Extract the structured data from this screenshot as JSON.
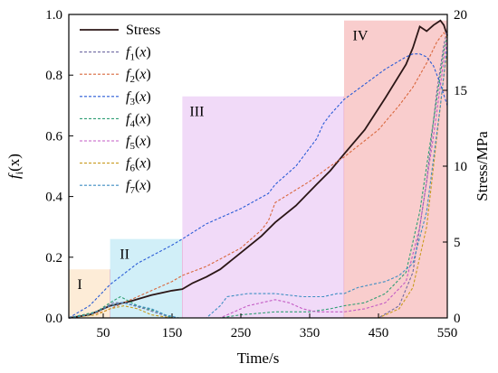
{
  "chart_data": {
    "type": "line",
    "xlabel": "Time/s",
    "ylabel_left": "f_i(x)",
    "ylabel_right": "Stress/MPa",
    "xlim": [
      0,
      550
    ],
    "ylim_left": [
      0,
      1.0
    ],
    "ylim_right": [
      0,
      20
    ],
    "x_ticks": [
      "50",
      "150",
      "250",
      "350",
      "450",
      "550"
    ],
    "y_left_ticks": [
      "0.0",
      "0.2",
      "0.4",
      "0.6",
      "0.8",
      "1.0"
    ],
    "y_right_ticks": [
      "0",
      "5",
      "10",
      "15",
      "20"
    ],
    "grid": false,
    "legend_position": "top-left",
    "stages": [
      {
        "label": "I",
        "x_range": [
          0,
          60
        ],
        "y_top": 0.16,
        "color": "#fde9d0"
      },
      {
        "label": "II",
        "x_range": [
          60,
          165
        ],
        "y_top": 0.26,
        "color": "#c9ecf7"
      },
      {
        "label": "III",
        "x_range": [
          165,
          400
        ],
        "y_top": 0.73,
        "color": "#eed3f7"
      },
      {
        "label": "IV",
        "x_range": [
          400,
          550
        ],
        "y_top": 0.98,
        "color": "#f8c4c4"
      }
    ],
    "series": [
      {
        "name": "Stress",
        "axis": "right",
        "style": "solid",
        "color": "#2b1616",
        "x": [
          0,
          30,
          60,
          90,
          120,
          150,
          165,
          180,
          200,
          220,
          250,
          280,
          300,
          330,
          360,
          380,
          400,
          430,
          460,
          490,
          500,
          510,
          520,
          530,
          540,
          545,
          550
        ],
        "y": [
          0,
          0.2,
          0.8,
          1.1,
          1.5,
          1.8,
          1.9,
          2.3,
          2.7,
          3.2,
          4.3,
          5.4,
          6.3,
          7.4,
          8.8,
          9.7,
          10.8,
          12.4,
          14.5,
          16.7,
          17.8,
          19.2,
          18.9,
          19.3,
          19.6,
          19.3,
          18.6
        ]
      },
      {
        "name": "f",
        "sub": "1",
        "arg": "(x)",
        "axis": "left",
        "style": "dashed",
        "color": "#6f6aa2",
        "x": [
          0,
          40,
          65,
          80,
          110,
          150,
          180,
          200,
          220,
          250,
          300,
          350,
          400,
          420,
          450,
          480,
          500,
          520,
          535,
          545,
          550
        ],
        "y": [
          0,
          0.02,
          0.05,
          0.05,
          0.03,
          0.0,
          0.0,
          0.0,
          0.0,
          0.0,
          0.0,
          0.0,
          0.0,
          0.0,
          0.0,
          0.04,
          0.15,
          0.45,
          0.75,
          0.9,
          0.95
        ]
      },
      {
        "name": "f",
        "sub": "2",
        "arg": "(x)",
        "axis": "left",
        "style": "dashed",
        "color": "#d9683e",
        "x": [
          0,
          50,
          100,
          150,
          165,
          200,
          250,
          280,
          290,
          300,
          350,
          380,
          400,
          450,
          480,
          500,
          520,
          535,
          545,
          550
        ],
        "y": [
          0,
          0.02,
          0.07,
          0.12,
          0.14,
          0.17,
          0.23,
          0.29,
          0.32,
          0.38,
          0.45,
          0.5,
          0.53,
          0.62,
          0.7,
          0.76,
          0.84,
          0.91,
          0.94,
          0.92
        ]
      },
      {
        "name": "f",
        "sub": "3",
        "arg": "(x)",
        "axis": "left",
        "style": "dashed",
        "color": "#2a5cd6",
        "x": [
          0,
          30,
          60,
          100,
          150,
          165,
          200,
          250,
          290,
          300,
          330,
          360,
          370,
          380,
          400,
          430,
          460,
          490,
          500,
          510,
          520,
          530,
          540,
          550
        ],
        "y": [
          0,
          0.04,
          0.11,
          0.18,
          0.24,
          0.26,
          0.31,
          0.36,
          0.41,
          0.44,
          0.5,
          0.59,
          0.64,
          0.67,
          0.72,
          0.77,
          0.82,
          0.86,
          0.87,
          0.87,
          0.86,
          0.83,
          0.77,
          0.7
        ]
      },
      {
        "name": "f",
        "sub": "4",
        "arg": "(x)",
        "axis": "left",
        "style": "dashed",
        "color": "#2f9e73",
        "x": [
          0,
          40,
          60,
          75,
          100,
          130,
          150,
          170,
          200,
          210,
          220,
          250,
          300,
          350,
          380,
          400,
          430,
          460,
          490,
          510,
          530,
          545,
          550
        ],
        "y": [
          0,
          0.02,
          0.05,
          0.07,
          0.04,
          0.02,
          0.0,
          0.0,
          0.0,
          0.0,
          0.0,
          0.01,
          0.02,
          0.02,
          0.03,
          0.04,
          0.05,
          0.08,
          0.15,
          0.35,
          0.65,
          0.88,
          0.93
        ]
      },
      {
        "name": "f",
        "sub": "5",
        "arg": "(x)",
        "axis": "left",
        "style": "dashed",
        "color": "#c35bc4",
        "x": [
          0,
          30,
          60,
          90,
          120,
          150,
          170,
          200,
          220,
          240,
          260,
          280,
          300,
          320,
          340,
          360,
          380,
          400,
          430,
          460,
          490,
          510,
          530,
          545,
          550
        ],
        "y": [
          0,
          0.0,
          0.0,
          0.0,
          0.0,
          0.0,
          0.0,
          0.0,
          0.0,
          0.02,
          0.04,
          0.05,
          0.06,
          0.05,
          0.03,
          0.02,
          0.02,
          0.02,
          0.03,
          0.05,
          0.12,
          0.3,
          0.6,
          0.85,
          0.92
        ]
      },
      {
        "name": "f",
        "sub": "6",
        "arg": "(x)",
        "axis": "left",
        "style": "dashed",
        "color": "#c99b1f",
        "x": [
          0,
          40,
          60,
          80,
          100,
          120,
          150,
          200,
          250,
          300,
          350,
          400,
          450,
          480,
          500,
          520,
          535,
          545,
          550
        ],
        "y": [
          0,
          0.01,
          0.03,
          0.04,
          0.03,
          0.01,
          0.0,
          0.0,
          0.0,
          0.0,
          0.0,
          0.0,
          0.0,
          0.03,
          0.1,
          0.3,
          0.6,
          0.8,
          0.88
        ]
      },
      {
        "name": "f",
        "sub": "7",
        "arg": "(x)",
        "axis": "left",
        "style": "dashed",
        "color": "#3e8ec2",
        "x": [
          0,
          30,
          60,
          80,
          100,
          120,
          140,
          160,
          180,
          200,
          220,
          230,
          260,
          300,
          340,
          370,
          390,
          400,
          420,
          440,
          460,
          480,
          500,
          520,
          540,
          550
        ],
        "y": [
          0,
          0.01,
          0.04,
          0.05,
          0.04,
          0.03,
          0.01,
          0.0,
          0.0,
          0.0,
          0.04,
          0.07,
          0.08,
          0.08,
          0.07,
          0.07,
          0.08,
          0.08,
          0.1,
          0.11,
          0.12,
          0.14,
          0.18,
          0.35,
          0.7,
          0.9
        ]
      }
    ]
  }
}
